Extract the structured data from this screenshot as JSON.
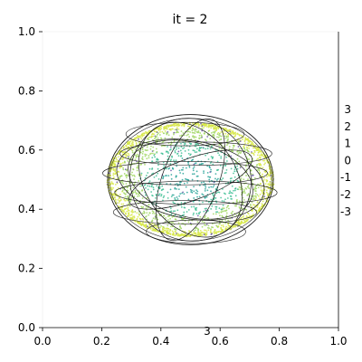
{
  "chart_data": {
    "type": "scatter",
    "title": "it = 2",
    "xlabel": "",
    "ylabel": "",
    "xlim": [
      0.0,
      1.0
    ],
    "ylim": [
      0.0,
      1.0
    ],
    "x_ticks": [
      "0.0",
      "0.2",
      "0.4",
      "0.6",
      "0.8",
      "1.0"
    ],
    "y_ticks": [
      "0.0",
      "0.2",
      "0.4",
      "0.6",
      "0.8",
      "1.0"
    ],
    "right_axis_ticks": [
      "3",
      "2",
      "1",
      "0",
      "-1",
      "-2",
      "-3"
    ],
    "stray_label": "3",
    "grid": false,
    "legend": "none",
    "ellipsoid": {
      "center": [
        0.5,
        0.5
      ],
      "radius_x": 0.28,
      "radius_y": 0.22,
      "point_count": 2600
    },
    "colors": {
      "axes": "#000000",
      "wireframe": "#1a1a1a",
      "point_outer": "#d7e84a",
      "point_mid": "#9fd660",
      "point_inner": "#3fbf95",
      "point_core": "#2aa59a",
      "point_rare": "#6b58a8"
    }
  }
}
